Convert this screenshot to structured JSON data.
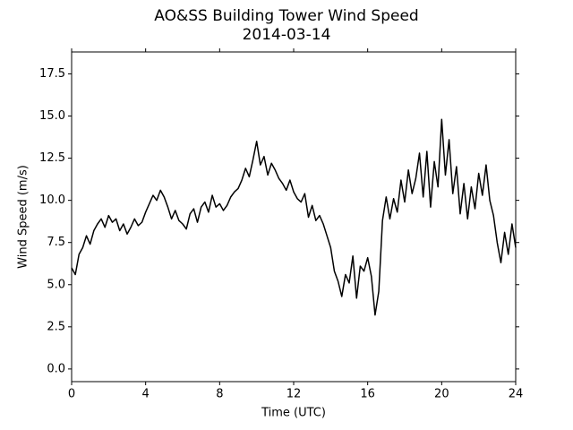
{
  "chart_data": {
    "type": "line",
    "title": "AO&SS Building Tower Wind Speed",
    "subtitle": "2014-03-14",
    "x_label": "Time (UTC)",
    "y_label": "Wind Speed (m/s)",
    "xlim": [
      0,
      24
    ],
    "xticks": [
      0,
      4,
      8,
      12,
      16,
      20,
      24
    ],
    "ylim": [
      -0.75,
      18.8
    ],
    "yticks": [
      {
        "value": 0,
        "label": "0.0"
      },
      {
        "value": 2.5,
        "label": "2.5"
      },
      {
        "value": 5,
        "label": "5.0"
      },
      {
        "value": 7.5,
        "label": "7.5"
      },
      {
        "value": 10,
        "label": "10.0"
      },
      {
        "value": 12.5,
        "label": "12.5"
      },
      {
        "value": 15,
        "label": "15.0"
      },
      {
        "value": 17.5,
        "label": "17.5"
      }
    ],
    "x": [
      0,
      0.2,
      0.4,
      0.6,
      0.8,
      1,
      1.2,
      1.4,
      1.6,
      1.8,
      2,
      2.2,
      2.4,
      2.6,
      2.8,
      3,
      3.2,
      3.4,
      3.6,
      3.8,
      4,
      4.2,
      4.4,
      4.6,
      4.8,
      5,
      5.2,
      5.4,
      5.6,
      5.8,
      6,
      6.2,
      6.4,
      6.6,
      6.8,
      7,
      7.2,
      7.4,
      7.6,
      7.8,
      8,
      8.2,
      8.4,
      8.6,
      8.8,
      9,
      9.2,
      9.4,
      9.6,
      9.8,
      10,
      10.2,
      10.4,
      10.6,
      10.8,
      11,
      11.2,
      11.4,
      11.6,
      11.8,
      12,
      12.2,
      12.4,
      12.6,
      12.8,
      13,
      13.2,
      13.4,
      13.6,
      13.8,
      14,
      14.2,
      14.4,
      14.6,
      14.8,
      15,
      15.2,
      15.4,
      15.6,
      15.8,
      16,
      16.2,
      16.4,
      16.6,
      16.8,
      17,
      17.2,
      17.4,
      17.6,
      17.8,
      18,
      18.2,
      18.4,
      18.6,
      18.8,
      19,
      19.2,
      19.4,
      19.6,
      19.8,
      20,
      20.2,
      20.4,
      20.6,
      20.8,
      21,
      21.2,
      21.4,
      21.6,
      21.8,
      22,
      22.2,
      22.4,
      22.6,
      22.8,
      23,
      23.2,
      23.4,
      23.6,
      23.8,
      24
    ],
    "series": [
      {
        "color": "#000000",
        "values": [
          6.0,
          5.6,
          6.8,
          7.2,
          7.9,
          7.4,
          8.2,
          8.6,
          8.9,
          8.4,
          9.1,
          8.7,
          8.9,
          8.2,
          8.6,
          8.0,
          8.4,
          8.9,
          8.5,
          8.7,
          9.3,
          9.8,
          10.3,
          10.0,
          10.6,
          10.2,
          9.6,
          8.9,
          9.4,
          8.8,
          8.6,
          8.3,
          9.2,
          9.5,
          8.7,
          9.6,
          9.9,
          9.3,
          10.3,
          9.6,
          9.8,
          9.4,
          9.7,
          10.2,
          10.5,
          10.7,
          11.2,
          11.9,
          11.4,
          12.4,
          13.5,
          12.1,
          12.6,
          11.5,
          12.2,
          11.8,
          11.3,
          11.0,
          10.6,
          11.2,
          10.5,
          10.1,
          9.9,
          10.4,
          9.0,
          9.7,
          8.8,
          9.1,
          8.6,
          7.9,
          7.2,
          5.8,
          5.2,
          4.3,
          5.6,
          5.1,
          6.7,
          4.2,
          6.1,
          5.8,
          6.6,
          5.5,
          3.2,
          4.6,
          8.8,
          10.2,
          8.9,
          10.1,
          9.3,
          11.2,
          9.9,
          11.8,
          10.4,
          11.3,
          12.8,
          10.2,
          12.9,
          9.6,
          12.3,
          10.8,
          14.8,
          11.5,
          13.6,
          10.4,
          12.0,
          9.2,
          11.0,
          8.9,
          10.8,
          9.5,
          11.6,
          10.3,
          12.1,
          10.0,
          9.1,
          7.5,
          6.3,
          8.1,
          6.8,
          8.6,
          7.2
        ]
      }
    ]
  }
}
